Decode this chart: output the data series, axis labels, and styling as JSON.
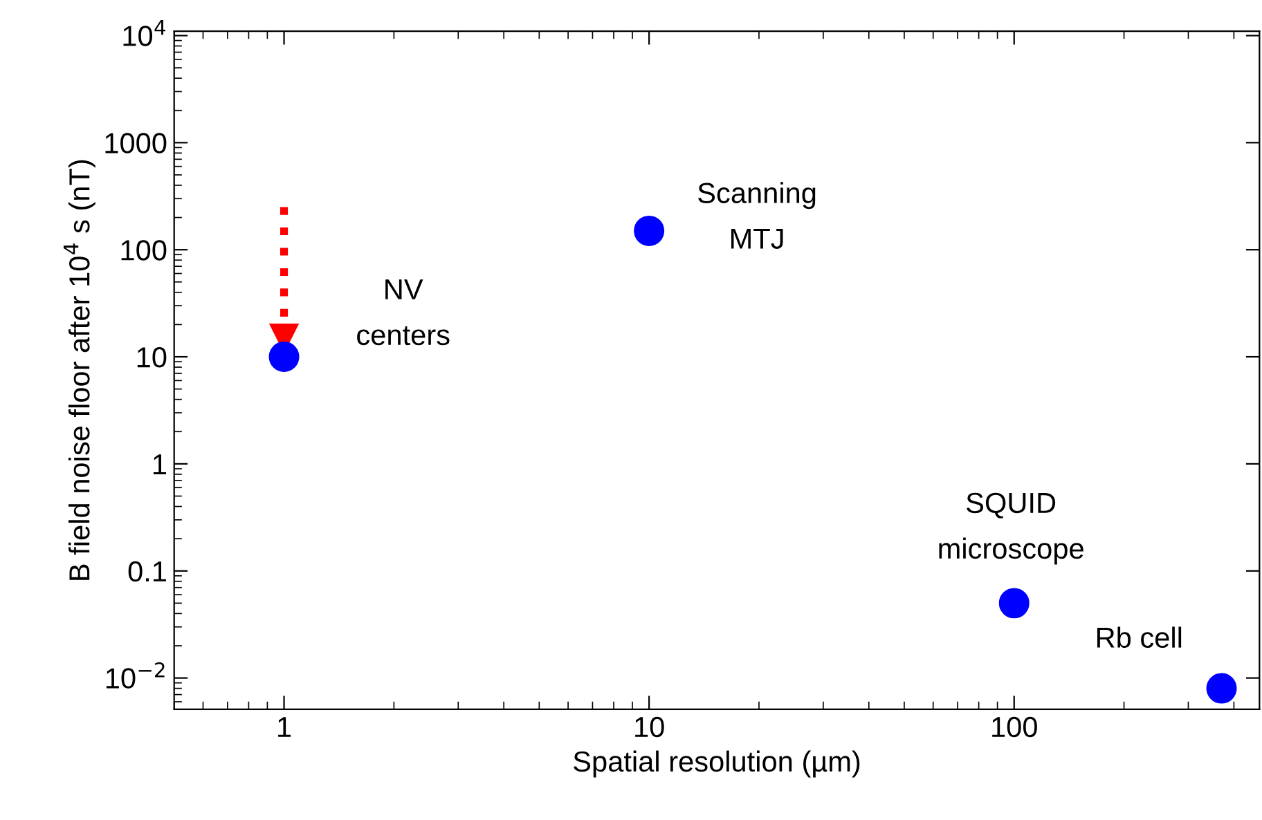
{
  "chart_data": {
    "type": "scatter",
    "xlabel": "Spatial resolution (µm)",
    "ylabel": "B field noise floor after 10$^{4}$ s (nT)",
    "log": "xy",
    "marker": "circle",
    "grid": false,
    "legend": false,
    "xlim": [
      0.5,
      470
    ],
    "xticks": [
      1,
      10,
      100
    ],
    "ylim": [
      0.0051,
      11000
    ],
    "yticks": [
      {
        "value": 0.01,
        "label": "10$^{−2}$"
      },
      0.1,
      1,
      10,
      100,
      1000,
      {
        "value": 10000,
        "label": "10$^{4}$"
      }
    ],
    "series": [
      {
        "color": "#0000ff",
        "x": [
          1,
          10,
          100,
          370
        ],
        "values": [
          10,
          150,
          0.05,
          0.008
        ]
      },
      {
        "type": "line",
        "color": "#ff0000",
        "line_style": "dotted",
        "marker": "triangle",
        "x": [
          1,
          1
        ],
        "values": [
          250,
          15
        ]
      }
    ],
    "annotations": [
      "NV\ncenters",
      "Scanning\nMTJ",
      "SQUID\nmicroscope",
      "Rb cell"
    ]
  }
}
